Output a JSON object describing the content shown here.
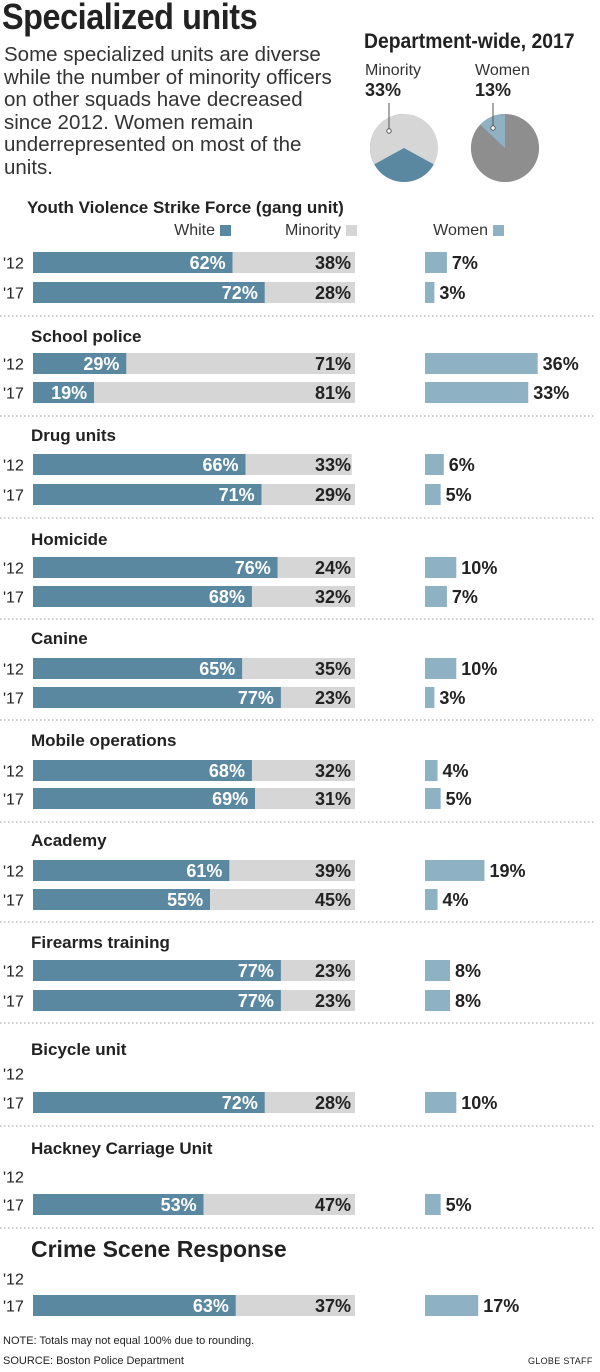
{
  "title": "Specialized units",
  "subtitle": "Some specialized units are diverse while the number of minority officers on other squads have decreased since 2012. Women remain underrepresented on most of the units.",
  "department": {
    "title": "Department-wide, 2017",
    "minority_label": "Minority",
    "minority_value": "33%",
    "women_label": "Women",
    "women_value": "13%"
  },
  "colors": {
    "white": "#5a88a0",
    "minority": "#d6d6d6",
    "women": "#8fb1c4",
    "pie_rest": "#8e8e8e"
  },
  "legend": {
    "white": "White",
    "minority": "Minority",
    "women": "Women"
  },
  "chart_data": {
    "type": "bar",
    "pies": [
      {
        "name": "Minority",
        "value": 33
      },
      {
        "name": "Women",
        "value": 13
      }
    ],
    "units": [
      {
        "name": "Youth Violence Strike Force (gang unit)",
        "rows": [
          {
            "year": "'12",
            "white": 62,
            "minority": 38,
            "women": 7
          },
          {
            "year": "'17",
            "white": 72,
            "minority": 28,
            "women": 3
          }
        ]
      },
      {
        "name": "School police",
        "rows": [
          {
            "year": "'12",
            "white": 29,
            "minority": 71,
            "women": 36
          },
          {
            "year": "'17",
            "white": 19,
            "minority": 81,
            "women": 33
          }
        ]
      },
      {
        "name": "Drug units",
        "rows": [
          {
            "year": "'12",
            "white": 66,
            "minority": 33,
            "women": 6
          },
          {
            "year": "'17",
            "white": 71,
            "minority": 29,
            "women": 5
          }
        ]
      },
      {
        "name": "Homicide",
        "rows": [
          {
            "year": "'12",
            "white": 76,
            "minority": 24,
            "women": 10
          },
          {
            "year": "'17",
            "white": 68,
            "minority": 32,
            "women": 7
          }
        ]
      },
      {
        "name": "Canine",
        "rows": [
          {
            "year": "'12",
            "white": 65,
            "minority": 35,
            "women": 10
          },
          {
            "year": "'17",
            "white": 77,
            "minority": 23,
            "women": 3
          }
        ]
      },
      {
        "name": "Mobile operations",
        "rows": [
          {
            "year": "'12",
            "white": 68,
            "minority": 32,
            "women": 4
          },
          {
            "year": "'17",
            "white": 69,
            "minority": 31,
            "women": 5
          }
        ]
      },
      {
        "name": "Academy",
        "rows": [
          {
            "year": "'12",
            "white": 61,
            "minority": 39,
            "women": 19
          },
          {
            "year": "'17",
            "white": 55,
            "minority": 45,
            "women": 4
          }
        ]
      },
      {
        "name": "Firearms training",
        "rows": [
          {
            "year": "'12",
            "white": 77,
            "minority": 23,
            "women": 8
          },
          {
            "year": "'17",
            "white": 77,
            "minority": 23,
            "women": 8
          }
        ]
      },
      {
        "name": "Bicycle unit",
        "rows": [
          {
            "year": "'12",
            "white": null,
            "minority": null,
            "women": null
          },
          {
            "year": "'17",
            "white": 72,
            "minority": 28,
            "women": 10
          }
        ]
      },
      {
        "name": "Hackney Carriage Unit",
        "rows": [
          {
            "year": "'12",
            "white": null,
            "minority": null,
            "women": null
          },
          {
            "year": "'17",
            "white": 53,
            "minority": 47,
            "women": 5
          }
        ]
      },
      {
        "name": "Crime Scene Response",
        "rows": [
          {
            "year": "'12",
            "white": null,
            "minority": null,
            "women": null
          },
          {
            "year": "'17",
            "white": 63,
            "minority": 37,
            "women": 17
          }
        ]
      }
    ]
  },
  "note": "NOTE: Totals may not equal 100% due to rounding.",
  "source": "SOURCE: Boston Police Department",
  "credit": "GLOBE STAFF"
}
